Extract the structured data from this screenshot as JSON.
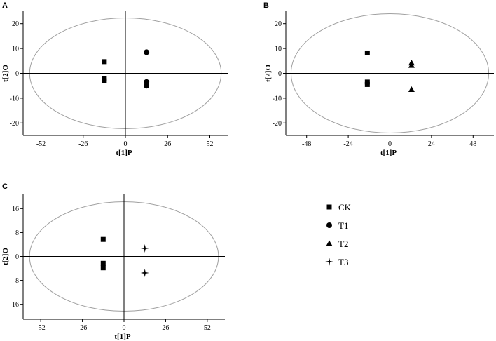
{
  "chart_data": [
    {
      "panel": "A",
      "type": "scatter",
      "xlabel": "t[1]P",
      "ylabel": "t[2]O",
      "xlim": [
        -63,
        63
      ],
      "ylim": [
        -25,
        25
      ],
      "xticks": [
        -52,
        -26,
        0,
        26,
        52
      ],
      "yticks": [
        -20,
        -10,
        0,
        10,
        20
      ],
      "ellipse": {
        "rx": 59,
        "ry": 22.3
      },
      "grid": false,
      "series": [
        {
          "name": "CK",
          "marker": "square",
          "points": [
            [
              -13,
              4.7
            ],
            [
              -13,
              -2.0
            ],
            [
              -13,
              -3.0
            ]
          ]
        },
        {
          "name": "T1",
          "marker": "circle",
          "points": [
            [
              13,
              8.5
            ],
            [
              13,
              -3.5
            ],
            [
              13,
              -5.0
            ]
          ]
        }
      ]
    },
    {
      "panel": "B",
      "type": "scatter",
      "xlabel": "t[1]P",
      "ylabel": "t[2]O",
      "xlim": [
        -60,
        60
      ],
      "ylim": [
        -25,
        25
      ],
      "xticks": [
        -48,
        -24,
        0,
        24,
        48
      ],
      "yticks": [
        -20,
        -10,
        0,
        10,
        20
      ],
      "ellipse": {
        "rx": 57,
        "ry": 24
      },
      "grid": false,
      "series": [
        {
          "name": "CK",
          "marker": "square",
          "points": [
            [
              -13,
              8.2
            ],
            [
              -13,
              -3.5
            ],
            [
              -13,
              -4.5
            ]
          ]
        },
        {
          "name": "T2",
          "marker": "triangle",
          "points": [
            [
              12.5,
              4.2
            ],
            [
              12.5,
              3.2
            ],
            [
              12.5,
              -6.5
            ]
          ]
        }
      ]
    },
    {
      "panel": "C",
      "type": "scatter",
      "xlabel": "t[1]P",
      "ylabel": "t[2]O",
      "xlim": [
        -63,
        63
      ],
      "ylim": [
        -21,
        21
      ],
      "xticks": [
        -52,
        -26,
        0,
        26,
        52
      ],
      "yticks": [
        -16,
        -8,
        0,
        8,
        16
      ],
      "ellipse": {
        "rx": 59,
        "ry": 18.3
      },
      "grid": false,
      "series": [
        {
          "name": "CK",
          "marker": "square",
          "points": [
            [
              -13,
              5.7
            ],
            [
              -13,
              -2.3
            ],
            [
              -13,
              -3.8
            ]
          ]
        },
        {
          "name": "T3",
          "marker": "star",
          "points": [
            [
              13,
              2.7
            ],
            [
              13,
              -5.5
            ]
          ]
        }
      ]
    }
  ],
  "legend": [
    {
      "label": "CK",
      "marker": "square"
    },
    {
      "label": "T1",
      "marker": "circle"
    },
    {
      "label": "T2",
      "marker": "triangle"
    },
    {
      "label": "T3",
      "marker": "star"
    }
  ],
  "colors": {
    "marker": "#000000",
    "ellipse": "#a0a0a0",
    "axes": "#000000"
  }
}
